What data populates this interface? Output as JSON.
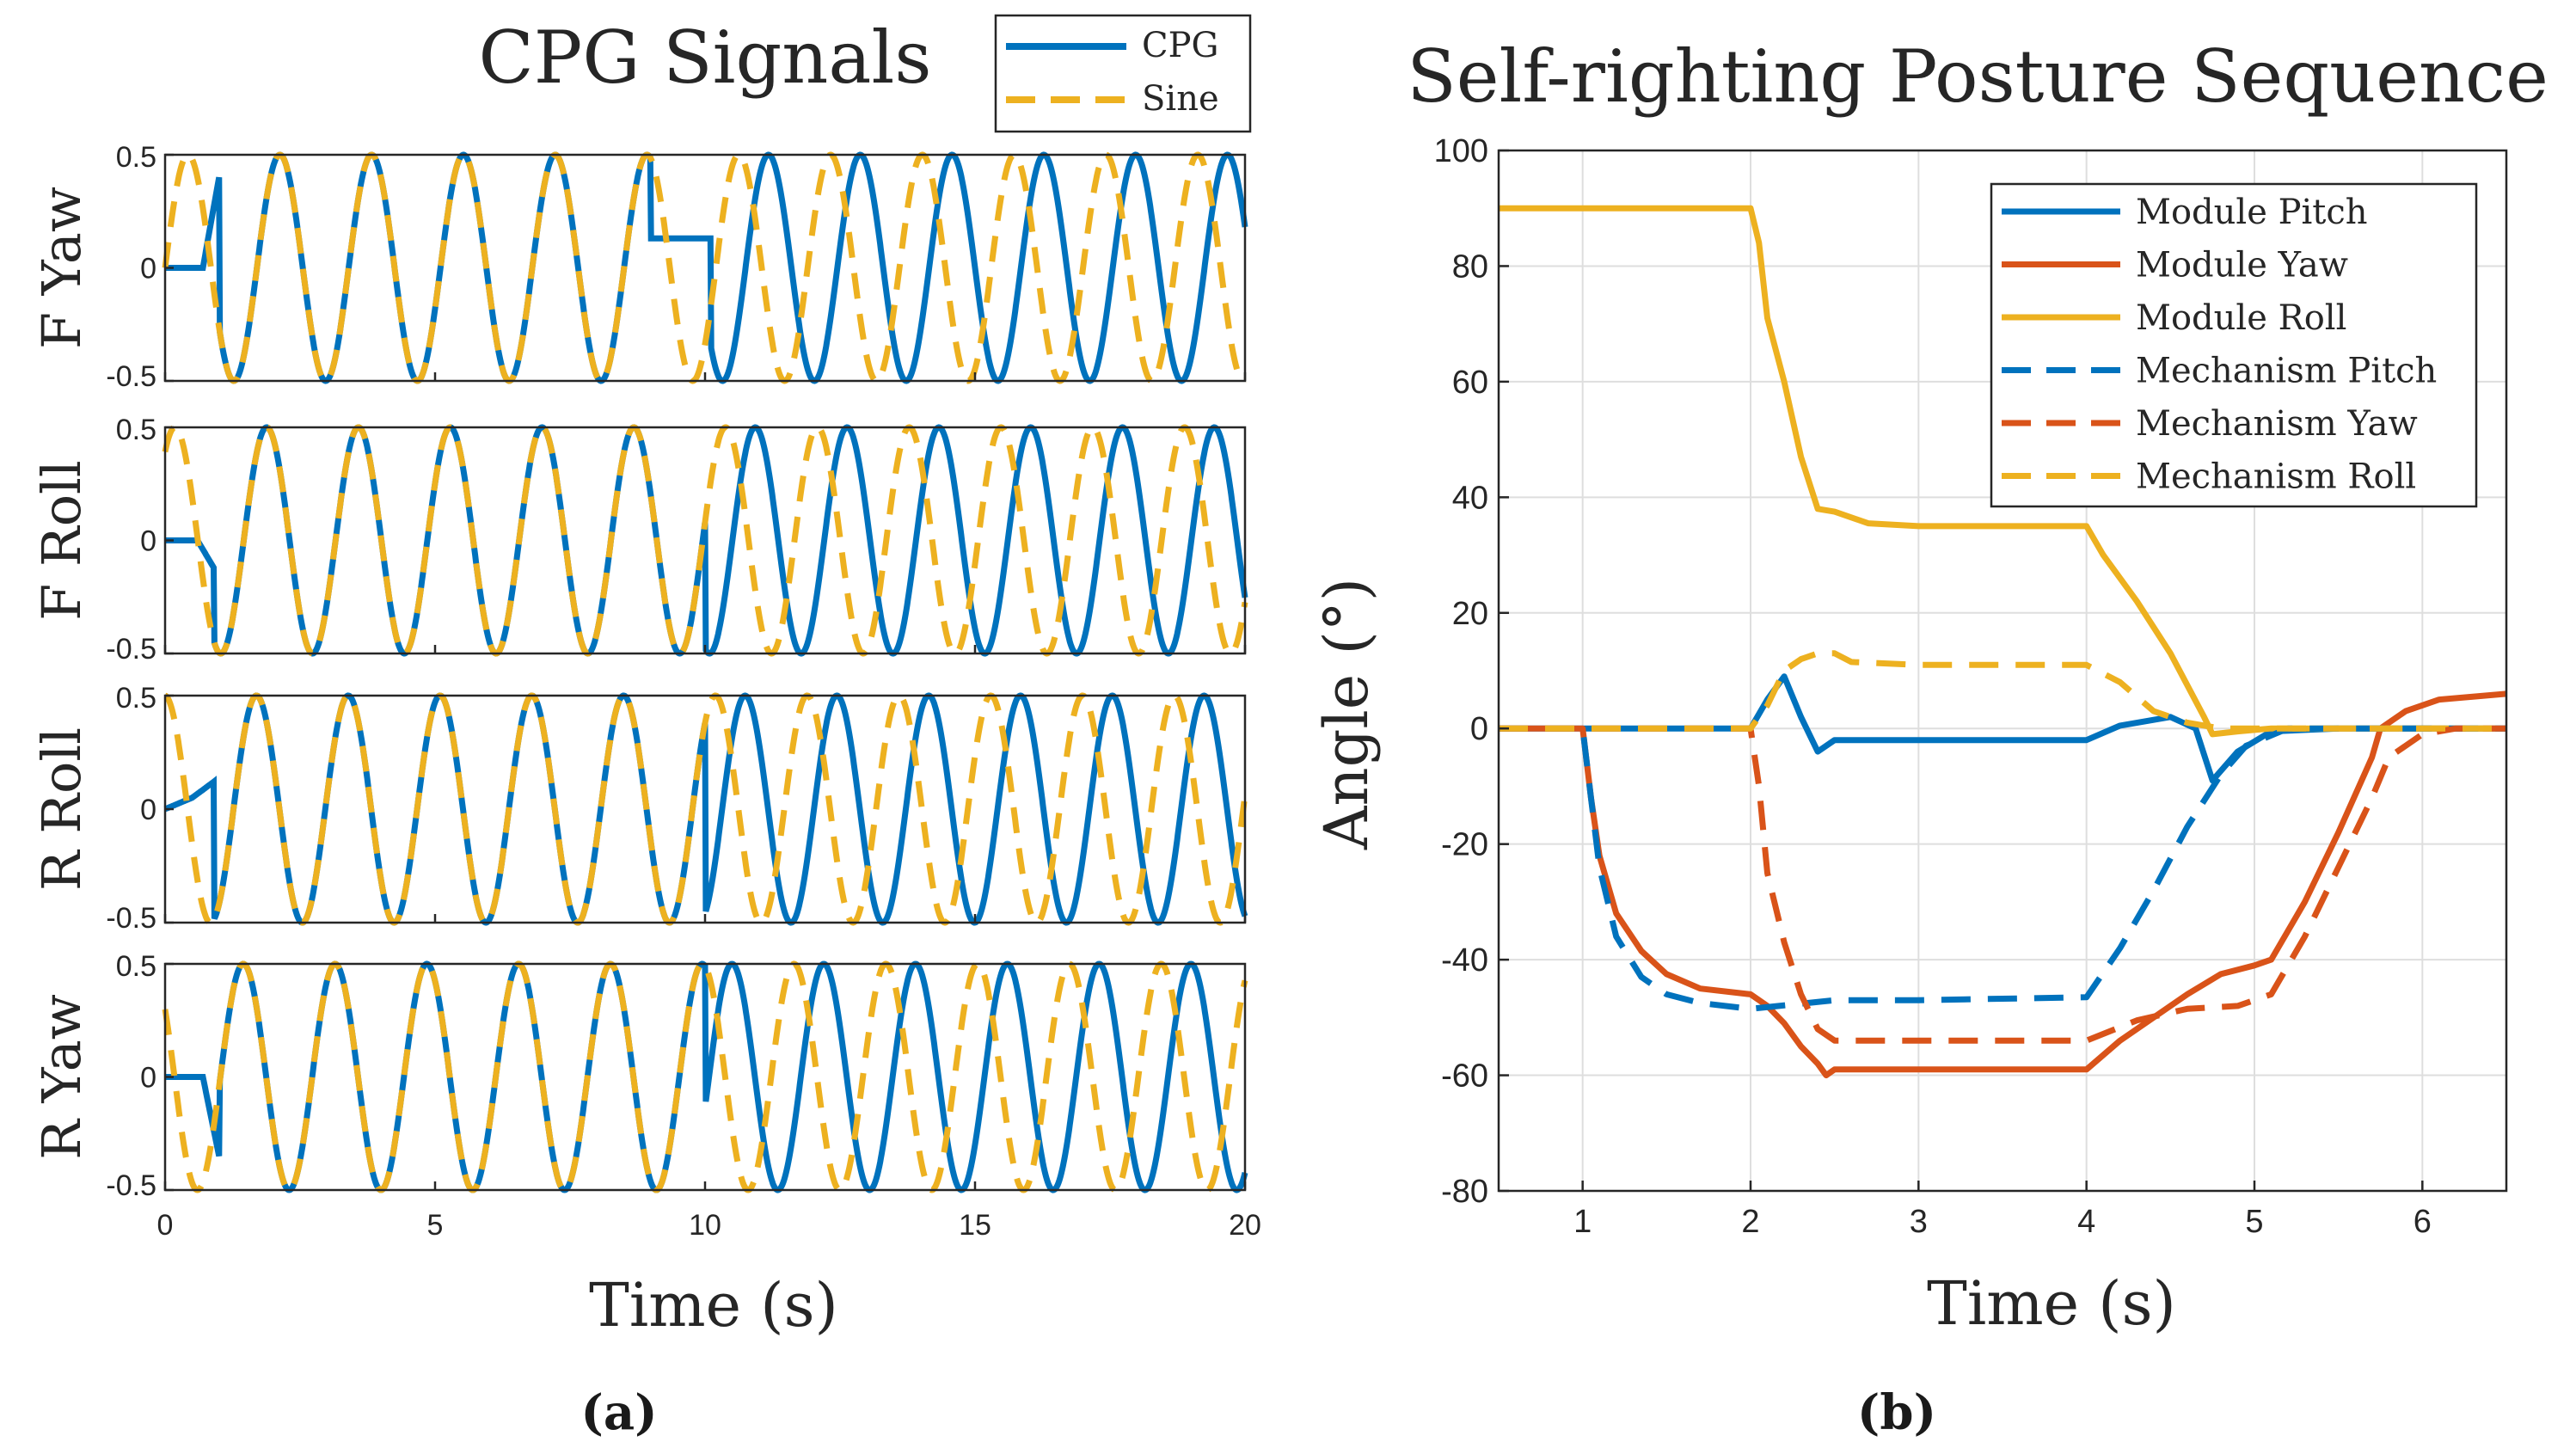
{
  "colors": {
    "blue": "#0072BD",
    "orange": "#D95319",
    "yellow": "#EDB120",
    "grid": "#dedede",
    "axis": "#262626"
  },
  "chart_data": [
    {
      "type": "line",
      "title": "CPG Signals",
      "xlabel": "Time (s)",
      "xlim": [
        0,
        20
      ],
      "xticks": [
        0,
        5,
        10,
        15,
        20
      ],
      "xtick_labels": [
        "0",
        "5",
        "10",
        "15",
        "20"
      ],
      "ylim": [
        -0.5,
        0.5
      ],
      "ytick_labels": [
        "0.5",
        "0",
        "-0.5"
      ],
      "legend": {
        "position": "top-right",
        "entries": [
          "CPG",
          "Sine"
        ]
      },
      "panel_label": "(a)",
      "subplots": [
        {
          "ylabel": "F Yaw",
          "series": [
            {
              "name": "CPG",
              "style": "solid",
              "shape": "cpg",
              "amplitude": 0.5,
              "period": 1.7,
              "phase": 0.0,
              "transition": [
                [
                  0,
                  0
                ],
                [
                  0.7,
                  0
                ],
                [
                  1.0,
                  0.4
                ]
              ],
              "gap": [
                9.0,
                10.1,
                0.13
              ]
            },
            {
              "name": "Sine",
              "style": "dashed",
              "shape": "sine",
              "amplitude": 0.5,
              "period": 1.7,
              "phase": 0.0
            }
          ]
        },
        {
          "ylabel": "F Roll",
          "series": [
            {
              "name": "CPG",
              "style": "solid",
              "shape": "cpg",
              "amplitude": 0.5,
              "period": 1.7,
              "phase": 0.9,
              "transition": [
                [
                  0,
                  0
                ],
                [
                  0.6,
                  0
                ],
                [
                  0.9,
                  -0.12
                ]
              ],
              "gap": [
                8.8,
                10.0,
                null
              ]
            },
            {
              "name": "Sine",
              "style": "dashed",
              "shape": "sine",
              "amplitude": 0.5,
              "period": 1.7,
              "phase": 0.9
            }
          ]
        },
        {
          "ylabel": "R Roll",
          "series": [
            {
              "name": "CPG",
              "style": "solid",
              "shape": "cpg",
              "amplitude": 0.5,
              "period": 1.7,
              "phase": 1.6,
              "transition": [
                [
                  0,
                  0
                ],
                [
                  0.5,
                  0.05
                ],
                [
                  0.9,
                  0.12
                ]
              ],
              "gap": [
                8.7,
                10.0,
                null
              ]
            },
            {
              "name": "Sine",
              "style": "dashed",
              "shape": "sine",
              "amplitude": 0.5,
              "period": 1.7,
              "phase": 1.6
            }
          ]
        },
        {
          "ylabel": "R Yaw",
          "series": [
            {
              "name": "CPG",
              "style": "solid",
              "shape": "cpg",
              "amplitude": 0.5,
              "period": 1.7,
              "phase": 2.5,
              "transition": [
                [
                  0,
                  0
                ],
                [
                  0.7,
                  0
                ],
                [
                  1.0,
                  -0.35
                ]
              ],
              "gap": [
                8.8,
                10.0,
                null
              ]
            },
            {
              "name": "Sine",
              "style": "dashed",
              "shape": "sine",
              "amplitude": 0.5,
              "period": 1.7,
              "phase": 2.5
            }
          ]
        }
      ]
    },
    {
      "type": "line",
      "title": "Self-righting Posture Sequence",
      "xlabel": "Time (s)",
      "ylabel": "Angle (°)",
      "xlim": [
        0.5,
        6.5
      ],
      "ylim": [
        -80,
        100
      ],
      "xticks": [
        1,
        2,
        3,
        4,
        5,
        6
      ],
      "yticks": [
        -80,
        -60,
        -40,
        -20,
        0,
        20,
        40,
        60,
        80,
        100
      ],
      "grid": true,
      "legend": {
        "position": "top-right"
      },
      "panel_label": "(b)",
      "series": [
        {
          "name": "Module Pitch",
          "color": "blue",
          "style": "solid",
          "x": [
            0.5,
            2.0,
            2.1,
            2.2,
            2.3,
            2.4,
            2.5,
            3.0,
            4.0,
            4.2,
            4.5,
            4.65,
            4.75,
            4.9,
            5.1,
            5.5,
            6.5
          ],
          "y": [
            0,
            0,
            5,
            9,
            2,
            -4,
            -2,
            -2,
            -2,
            0.5,
            2,
            0,
            -9,
            -4,
            -0.5,
            0,
            0
          ]
        },
        {
          "name": "Module Yaw",
          "color": "orange",
          "style": "solid",
          "x": [
            0.5,
            1.0,
            1.05,
            1.1,
            1.2,
            1.35,
            1.5,
            1.7,
            2.0,
            2.1,
            2.2,
            2.3,
            2.4,
            2.45,
            2.5,
            2.6,
            3.0,
            4.0,
            4.2,
            4.6,
            4.8,
            5.0,
            5.1,
            5.3,
            5.5,
            5.7,
            5.75,
            5.9,
            6.1,
            6.5
          ],
          "y": [
            0,
            0,
            -12,
            -22,
            -32,
            -38.5,
            -42.5,
            -45,
            -46,
            -48,
            -51,
            -55,
            -58,
            -60,
            -59,
            -59,
            -59,
            -59,
            -54,
            -46,
            -42.5,
            -41,
            -40,
            -30,
            -18,
            -5,
            0,
            3,
            5,
            6
          ]
        },
        {
          "name": "Module Roll",
          "color": "yellow",
          "style": "solid",
          "x": [
            0.5,
            1.0,
            2.0,
            2.05,
            2.1,
            2.2,
            2.3,
            2.4,
            2.5,
            2.7,
            3.0,
            4.0,
            4.1,
            4.3,
            4.5,
            4.7,
            4.75,
            4.9,
            5.1,
            6.5
          ],
          "y": [
            90,
            90,
            90,
            84,
            71,
            60,
            47,
            38,
            37.5,
            35.5,
            35,
            35,
            30,
            22,
            13,
            2,
            -1,
            -0.5,
            0,
            0
          ]
        },
        {
          "name": "Mechanism Pitch",
          "color": "blue",
          "style": "dashed",
          "x": [
            0.5,
            1.0,
            1.05,
            1.1,
            1.2,
            1.35,
            1.5,
            1.7,
            2.0,
            2.5,
            3.0,
            4.0,
            4.2,
            4.4,
            4.6,
            4.8,
            4.95,
            5.2,
            6.5
          ],
          "y": [
            0,
            0,
            -12,
            -24,
            -36,
            -43,
            -46,
            -47.5,
            -48.5,
            -47,
            -47,
            -46.5,
            -38,
            -28,
            -17,
            -8,
            -3,
            0,
            0
          ]
        },
        {
          "name": "Mechanism Yaw",
          "color": "orange",
          "style": "dashed",
          "x": [
            0.5,
            2.0,
            2.05,
            2.1,
            2.2,
            2.3,
            2.4,
            2.5,
            3.0,
            4.0,
            4.3,
            4.6,
            4.9,
            5.1,
            5.3,
            5.5,
            5.7,
            5.8,
            6.0,
            6.2,
            6.5
          ],
          "y": [
            0,
            0,
            -10,
            -25,
            -37,
            -46,
            -52,
            -54,
            -54,
            -54,
            -50.5,
            -48.5,
            -48,
            -46,
            -36,
            -24,
            -12,
            -5,
            -1,
            0,
            0
          ]
        },
        {
          "name": "Mechanism Roll",
          "color": "yellow",
          "style": "dashed",
          "x": [
            0.5,
            2.0,
            2.1,
            2.2,
            2.3,
            2.4,
            2.5,
            2.6,
            3.0,
            4.0,
            4.2,
            4.4,
            4.6,
            4.8,
            5.0,
            6.5
          ],
          "y": [
            0,
            0,
            4,
            10,
            12,
            13,
            13,
            11.5,
            11,
            11,
            8,
            3,
            1,
            0,
            0,
            0
          ]
        }
      ]
    }
  ]
}
